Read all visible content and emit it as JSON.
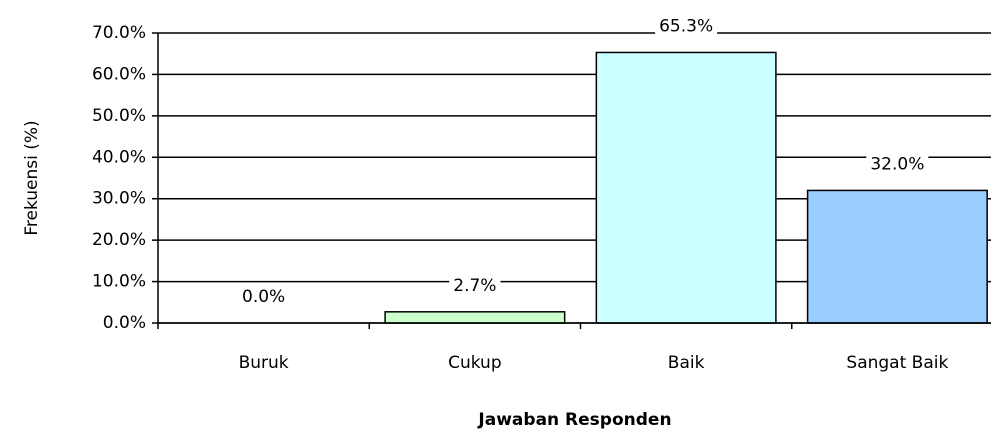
{
  "chart_data": {
    "type": "bar",
    "x_label": "Jawaban Responden",
    "y_label": "Frekuensi (%)",
    "categories": [
      "Buruk",
      "Cukup",
      "Baik",
      "Sangat Baik"
    ],
    "values": [
      0,
      2.7,
      65.3,
      32.0
    ],
    "value_labels": [
      "0.0%",
      "2.7%",
      "65.3%",
      "32.0%"
    ],
    "colors": [
      "#ccffcc",
      "#ccffcc",
      "#ccffff",
      "#99ccff"
    ],
    "ylim": [
      0,
      70
    ],
    "yticks": [
      {
        "value": 0,
        "label": "0.0%"
      },
      {
        "value": 10,
        "label": "10.0%"
      },
      {
        "value": 20,
        "label": "20.0%"
      },
      {
        "value": 30,
        "label": "30.0%"
      },
      {
        "value": 40,
        "label": "40.0%"
      },
      {
        "value": 50,
        "label": "50.0%"
      },
      {
        "value": 60,
        "label": "60.0%"
      },
      {
        "value": 70,
        "label": "70.0%"
      }
    ],
    "grid": true
  }
}
